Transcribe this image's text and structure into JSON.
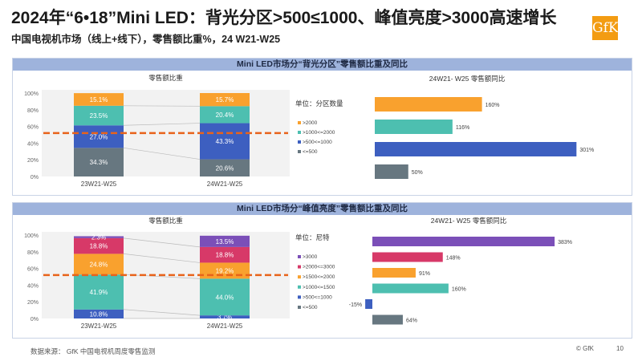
{
  "header": {
    "title": "2024年“6•18”Mini LED：背光分区>500≤1000、峰值亮度>3000高速增长",
    "subtitle": "中国电视机市场（线上+线下），零售额比重%，24 W21-W25",
    "logo": "GfK"
  },
  "footer": {
    "source": "数据来源： GfK 中国电视机周度零售监测",
    "copyright": "© GfK",
    "page": "10"
  },
  "colors": {
    "orange": "#f9a12e",
    "teal": "#4dbfb0",
    "blue": "#3d5fc0",
    "gray": "#677780",
    "purple": "#7b4fb8",
    "pink": "#d73968",
    "header_band": "#9eb3dc",
    "dashed_line": "#e8631b"
  },
  "chart_data": [
    {
      "type": "bar",
      "stacked": true,
      "panel_title": "Mini LED市场分“背光分区”零售额比重及同比",
      "title": "零售额比重",
      "categories": [
        "23W21-W25",
        "24W21-W25"
      ],
      "ylim": [
        0,
        100
      ],
      "yticks": [
        "0%",
        "20%",
        "40%",
        "60%",
        "80%",
        "100%"
      ],
      "reference_line": 52,
      "series": [
        {
          "name": "<=500",
          "color": "#677780",
          "values": [
            34.3,
            20.6
          ],
          "labels": [
            "34.3%",
            "20.6%"
          ]
        },
        {
          "name": ">500<=1000",
          "color": "#3d5fc0",
          "values": [
            27.0,
            43.3
          ],
          "labels": [
            "27.0%",
            "43.3%"
          ]
        },
        {
          "name": ">1000<=2000",
          "color": "#4dbfb0",
          "values": [
            23.5,
            20.4
          ],
          "labels": [
            "23.5%",
            "20.4%"
          ]
        },
        {
          "name": ">2000",
          "color": "#f9a12e",
          "values": [
            15.1,
            15.7
          ],
          "labels": [
            "15.1%",
            "15.7%"
          ]
        }
      ]
    },
    {
      "type": "bar",
      "orientation": "horizontal",
      "title": "24W21- W25 零售额同比",
      "unit_label": "单位：分区数量",
      "legend": [
        ">2000",
        ">1000<=2000",
        ">500<=1000",
        "<=500"
      ],
      "categories": [
        ">2000",
        ">1000<=2000",
        ">500<=1000",
        "<=500"
      ],
      "values": [
        160,
        116,
        301,
        50
      ],
      "labels": [
        "160%",
        "116%",
        "301%",
        "50%"
      ],
      "colors": [
        "#f9a12e",
        "#4dbfb0",
        "#3d5fc0",
        "#677780"
      ]
    },
    {
      "type": "bar",
      "stacked": true,
      "panel_title": "Mini LED市场分“峰值亮度”零售额比重及同比",
      "title": "零售额比重",
      "categories": [
        "23W21-W25",
        "24W21-W25"
      ],
      "ylim": [
        0,
        100
      ],
      "yticks": [
        "0%",
        "20%",
        "40%",
        "60%",
        "80%",
        "100%"
      ],
      "reference_line": 52,
      "series": [
        {
          "name": "<=500",
          "color": "#677780",
          "values": [
            0,
            0
          ],
          "labels": [
            "",
            ""
          ]
        },
        {
          "name": ">500<=1000",
          "color": "#3d5fc0",
          "values": [
            10.8,
            3.7
          ],
          "labels": [
            "10.8%",
            "3.7%"
          ]
        },
        {
          "name": ">1000<=1500",
          "color": "#4dbfb0",
          "values": [
            41.9,
            44.0
          ],
          "labels": [
            "41.9%",
            "44.0%"
          ]
        },
        {
          "name": ">1500<=2000",
          "color": "#f9a12e",
          "values": [
            24.8,
            19.2
          ],
          "labels": [
            "24.8%",
            "19.2%"
          ]
        },
        {
          "name": ">2000<=3000",
          "color": "#d73968",
          "values": [
            18.8,
            18.8
          ],
          "labels": [
            "18.8%",
            "18.8%"
          ]
        },
        {
          "name": ">3000",
          "color": "#7b4fb8",
          "values": [
            2.3,
            13.5
          ],
          "labels": [
            "2.3%",
            "13.5%"
          ]
        }
      ]
    },
    {
      "type": "bar",
      "orientation": "horizontal",
      "title": "24W21- W25 零售额同比",
      "unit_label": "单位：尼特",
      "legend": [
        ">3000",
        ">2000<=3000",
        ">1500<=2000",
        ">1000<=1500",
        ">500<=1000",
        "<=500"
      ],
      "categories": [
        ">3000",
        ">2000<=3000",
        ">1500<=2000",
        ">1000<=1500",
        ">500<=1000",
        "<=500"
      ],
      "values": [
        383,
        148,
        91,
        160,
        -15,
        64
      ],
      "labels": [
        "383%",
        "148%",
        "91%",
        "160%",
        "-15%",
        "64%"
      ],
      "colors": [
        "#7b4fb8",
        "#d73968",
        "#f9a12e",
        "#4dbfb0",
        "#3d5fc0",
        "#677780"
      ],
      "axis_break": true
    }
  ]
}
